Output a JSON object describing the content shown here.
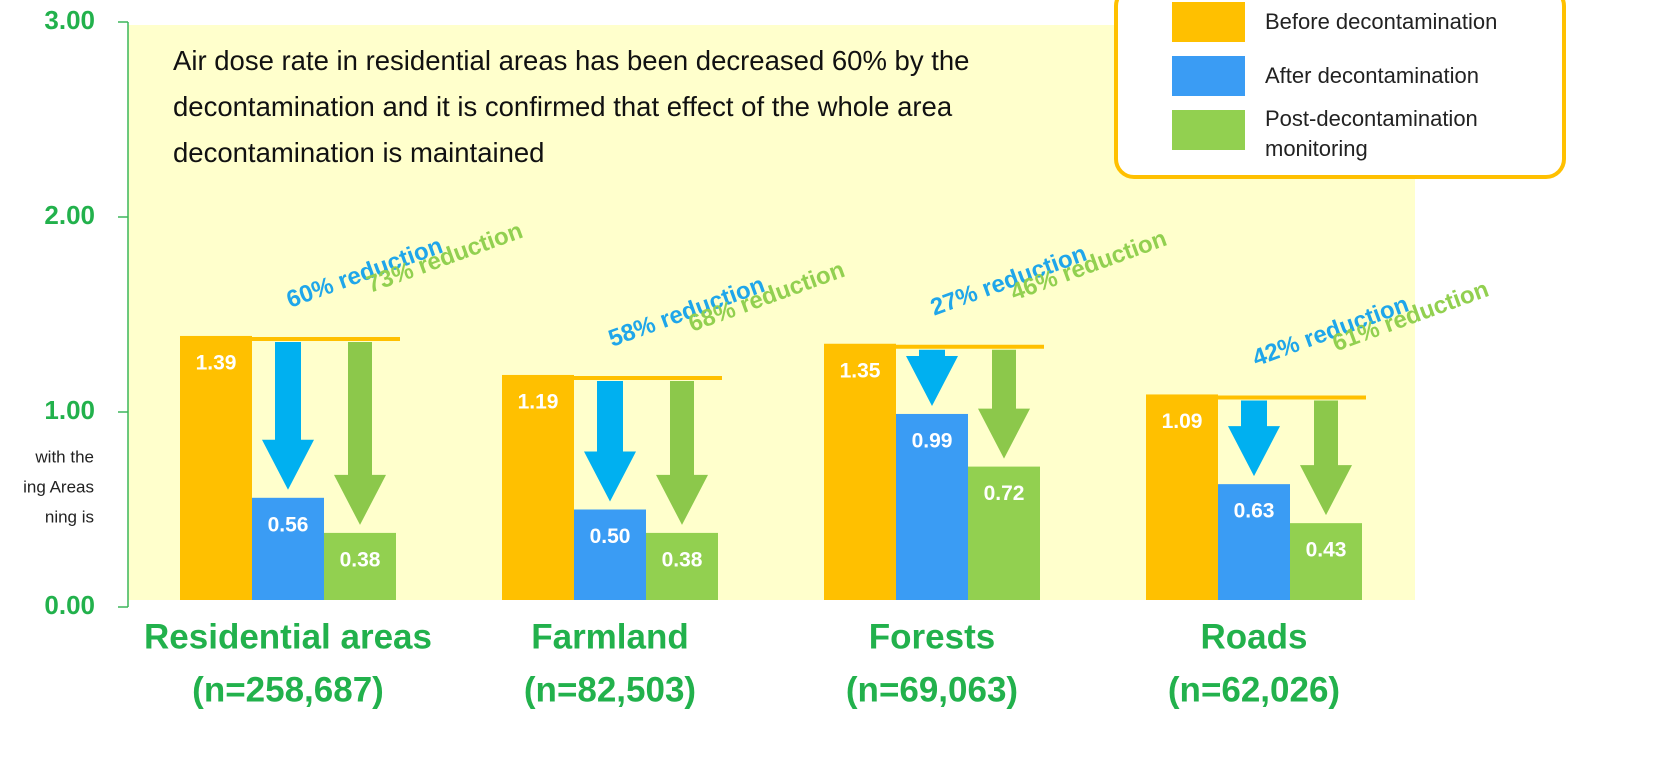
{
  "chart_data": {
    "type": "bar",
    "annotation": "Air dose rate in residential areas has been decreased 60% by the decontamination and it is confirmed that effect of the whole area decontamination is maintained",
    "side_note": [
      "with the",
      "ing Areas",
      "ning is"
    ],
    "categories": [
      "Residential areas",
      "Farmland",
      "Forests",
      "Roads"
    ],
    "category_notes": [
      "(n=258,687)",
      "(n=82,503)",
      "(n=69,063)",
      "(n=62,026)"
    ],
    "series": [
      {
        "name": "Before decontamination",
        "color": "#ffc000",
        "values": [
          1.39,
          1.19,
          1.35,
          1.09
        ],
        "value_labels": [
          "1.39",
          "1.19",
          "1.35",
          "1.09"
        ]
      },
      {
        "name": "After decontamination",
        "color": "#3a9cf4",
        "arrow_color": "#00b0f0",
        "label_color": "#1fa6ea",
        "values": [
          0.56,
          0.5,
          0.99,
          0.63
        ],
        "value_labels": [
          "0.56",
          "0.50",
          "0.99",
          "0.63"
        ],
        "reduction_labels": [
          "60% reduction",
          "58% reduction",
          "27% reduction",
          "42% reduction"
        ]
      },
      {
        "name": "Post-decontamination monitoring",
        "color": "#92d050",
        "arrow_color": "#8cc84b",
        "label_color": "#92d050",
        "values": [
          0.38,
          0.38,
          0.72,
          0.43
        ],
        "value_labels": [
          "0.38",
          "0.38",
          "0.72",
          "0.43"
        ],
        "reduction_labels": [
          "73% reduction",
          "68% reduction",
          "46% reduction",
          "61% reduction"
        ]
      }
    ],
    "ylim": [
      0,
      3
    ],
    "yticks": [
      {
        "value": 0,
        "label": "0.00"
      },
      {
        "value": 1,
        "label": "1.00"
      },
      {
        "value": 2,
        "label": "2.00"
      },
      {
        "value": 3,
        "label": "3.00"
      }
    ],
    "legend": "top-right"
  }
}
